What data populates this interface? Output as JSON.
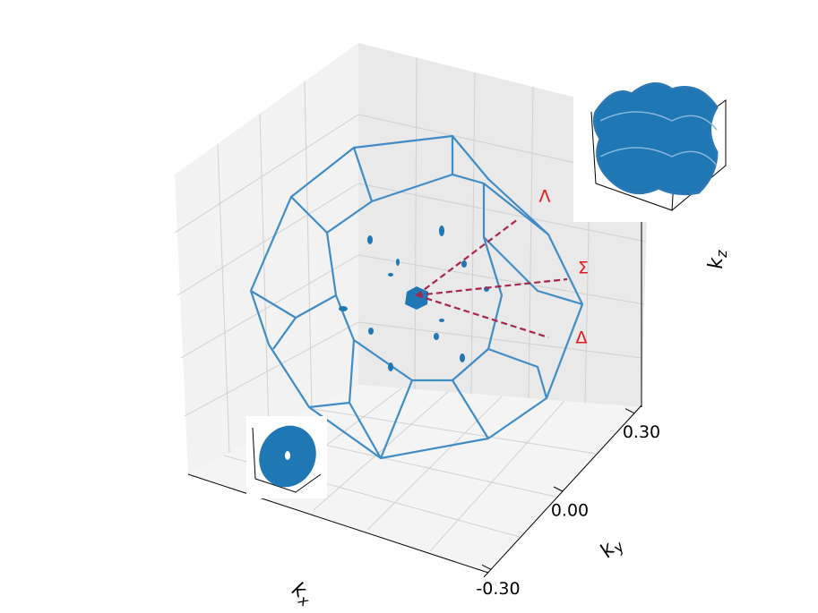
{
  "chart_data": {
    "type": "3d-surface",
    "xlabel": "k_x",
    "ylabel": "k_y",
    "zlabel": "k_z",
    "ylim": [
      -0.33,
      0.33
    ],
    "yticks": [
      {
        "value": -0.3,
        "label": "-0.30"
      },
      {
        "value": 0,
        "label": "0.00"
      },
      {
        "value": 0.3,
        "label": "0.30"
      }
    ],
    "annotations": [
      "Λ",
      "Σ",
      "Δ"
    ],
    "color": "#1f77b4"
  }
}
